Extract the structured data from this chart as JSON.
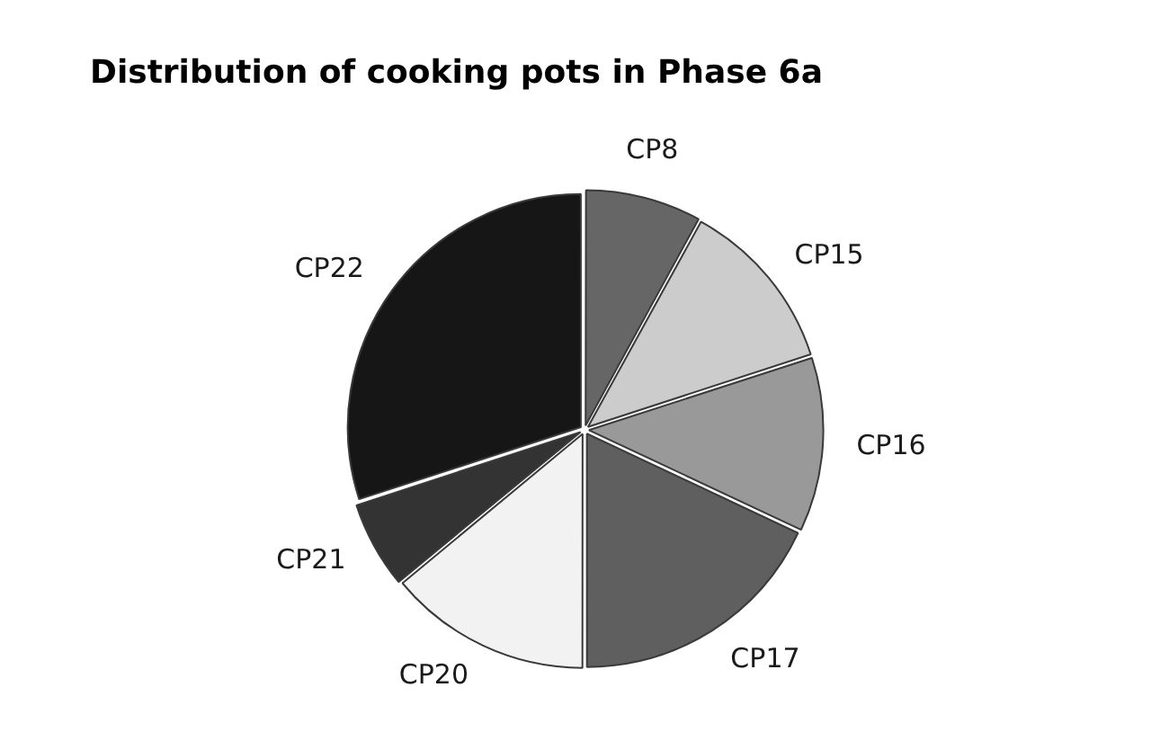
{
  "chart_data": {
    "type": "pie",
    "title": "Distribution of cooking pots in Phase 6a",
    "categories": [
      "CP8",
      "CP15",
      "CP16",
      "CP17",
      "CP20",
      "CP21",
      "CP22"
    ],
    "values": [
      8,
      12,
      12,
      18,
      14,
      6,
      30
    ],
    "colors": [
      "#666666",
      "#cccccc",
      "#999999",
      "#5f5f5f",
      "#f2f2f2",
      "#333333",
      "#161616"
    ]
  }
}
